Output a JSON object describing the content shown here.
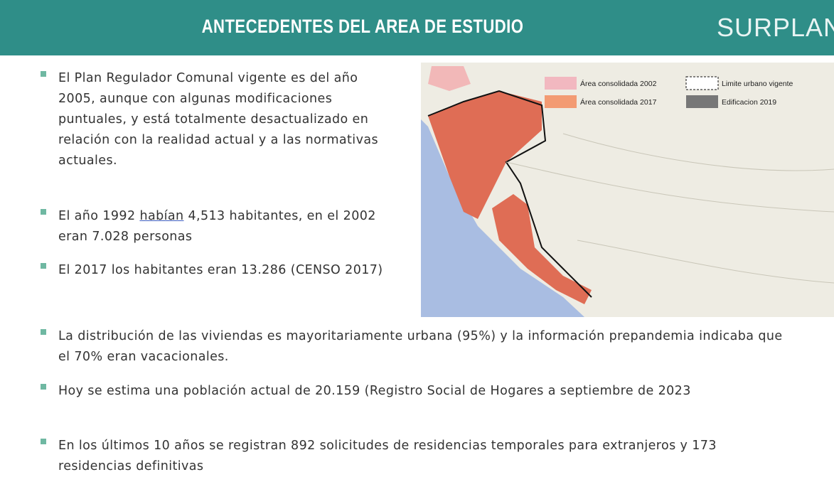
{
  "header": {
    "title": "ANTECEDENTES DEL AREA DE ESTUDIO",
    "logo": "SURPLAN"
  },
  "map": {
    "legend": [
      "Área consolidada 2002",
      "Limite urbano vigente",
      "Área consolidada 2017",
      "Edificacion 2019"
    ]
  },
  "bullets": [
    "El Plan Regulador Comunal vigente es del año 2005, aunque con algunas modificaciones puntuales, y está totalmente desactualizado en relación con la realidad actual y a las normativas actuales.",
    [
      "El año 1992 ",
      "habían",
      " 4,513 habitantes, en el 2002 eran 7.028 personas"
    ],
    "El 2017 los habitantes eran 13.286 (CENSO 2017)",
    "La distribución de las viviendas es mayoritariamente urbana (95%) y la información prepandemia indicaba que el 70% eran vacacionales.",
    " Hoy se estima una población actual de 20.159 (Registro Social de Hogares a septiembre de 2023",
    "En los últimos 10 años se registran 892 solicitudes de residencias temporales para extranjeros y 173 residencias definitivas"
  ]
}
